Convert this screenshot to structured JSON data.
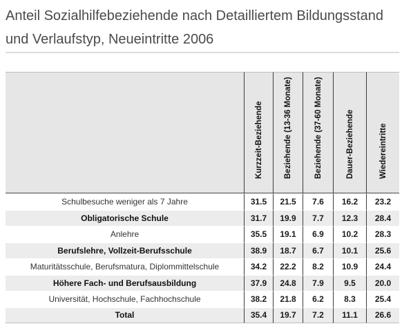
{
  "title": "Anteil Sozialhilfebeziehende nach Detailliertem Bildungsstand und Verlaufstyp, Neueintritte 2006",
  "table": {
    "columns": [
      "Kurzzeit-Beziehende",
      "Beziehende (13-36 Monate)",
      "Beziehende (37-60 Monate)",
      "Dauer-Beziehende",
      "Wiedereintritte"
    ],
    "rows": [
      {
        "label": "Schulbesuche weniger als 7 Jahre",
        "values": [
          "31.5",
          "21.5",
          "7.6",
          "16.2",
          "23.2"
        ]
      },
      {
        "label": "Obligatorische Schule",
        "values": [
          "31.7",
          "19.9",
          "7.7",
          "12.3",
          "28.4"
        ]
      },
      {
        "label": "Anlehre",
        "values": [
          "35.5",
          "19.1",
          "6.9",
          "10.2",
          "28.3"
        ]
      },
      {
        "label": "Berufslehre, Vollzeit-Berufsschule",
        "values": [
          "38.9",
          "18.7",
          "6.7",
          "10.1",
          "25.6"
        ]
      },
      {
        "label": "Maturitätsschule, Berufsmatura, Diplommittelschule",
        "values": [
          "34.2",
          "22.2",
          "8.2",
          "10.9",
          "24.4"
        ]
      },
      {
        "label": "Höhere Fach- und Berufsausbildung",
        "values": [
          "37.9",
          "24.8",
          "7.9",
          "9.5",
          "20.0"
        ]
      },
      {
        "label": "Universität, Hochschule, Fachhochschule",
        "values": [
          "38.2",
          "21.8",
          "6.2",
          "8.3",
          "25.4"
        ]
      },
      {
        "label": "Total",
        "values": [
          "35.4",
          "19.7",
          "7.2",
          "11.1",
          "26.6"
        ]
      }
    ]
  }
}
